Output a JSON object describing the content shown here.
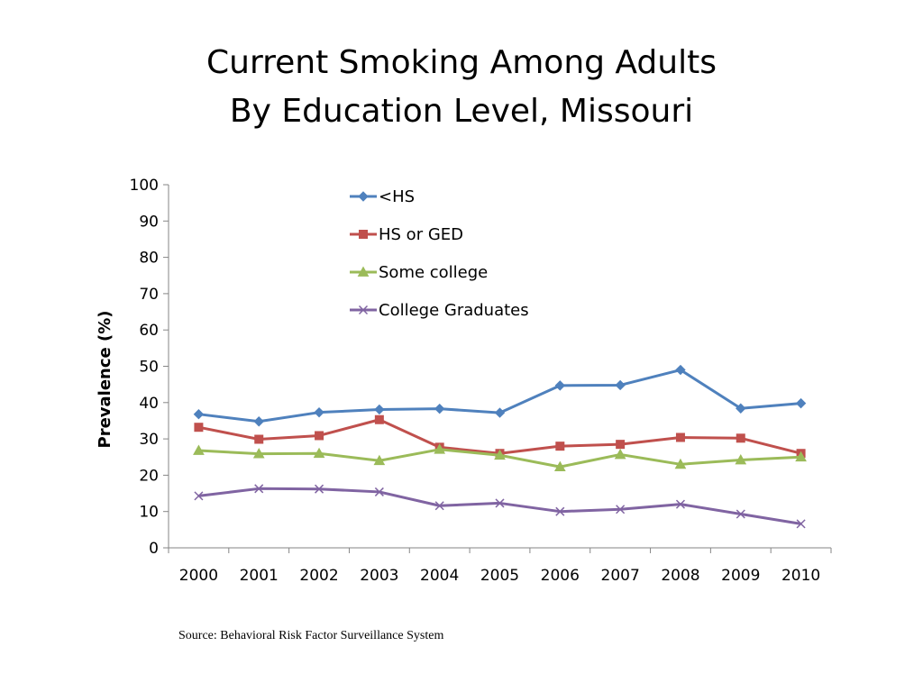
{
  "title": {
    "line1": "Current Smoking Among Adults",
    "line2": "By Education Level, Missouri"
  },
  "source": "Source: Behavioral Risk Factor Surveillance System",
  "chart_data": {
    "type": "line",
    "title": "Current Smoking Among Adults By Education Level, Missouri",
    "xlabel": "",
    "ylabel": "Prevalence (%)",
    "ylim": [
      0,
      100
    ],
    "yticks": [
      0,
      10,
      20,
      30,
      40,
      50,
      60,
      70,
      80,
      90,
      100
    ],
    "categories": [
      "2000",
      "2001",
      "2002",
      "2003",
      "2004",
      "2005",
      "2006",
      "2007",
      "2008",
      "2009",
      "2010"
    ],
    "grid": false,
    "legend_position": "top-center",
    "series": [
      {
        "name": "<HS",
        "color": "#4F81BD",
        "marker": "diamond",
        "values": [
          36.8,
          34.8,
          37.3,
          38.1,
          38.3,
          37.2,
          44.7,
          44.8,
          49.0,
          38.4,
          39.8
        ]
      },
      {
        "name": "HS or GED",
        "color": "#C0504D",
        "marker": "square",
        "values": [
          33.2,
          29.9,
          30.9,
          35.3,
          27.7,
          26.0,
          28.0,
          28.5,
          30.4,
          30.2,
          26.0
        ]
      },
      {
        "name": "Some college",
        "color": "#9BBB59",
        "marker": "triangle",
        "values": [
          26.8,
          25.9,
          26.0,
          24.0,
          27.1,
          25.5,
          22.3,
          25.7,
          23.0,
          24.2,
          25.0
        ]
      },
      {
        "name": "College Graduates",
        "color": "#8064A2",
        "marker": "x",
        "values": [
          14.3,
          16.3,
          16.2,
          15.4,
          11.6,
          12.3,
          10.0,
          10.6,
          12.0,
          9.3,
          6.6
        ]
      }
    ]
  }
}
